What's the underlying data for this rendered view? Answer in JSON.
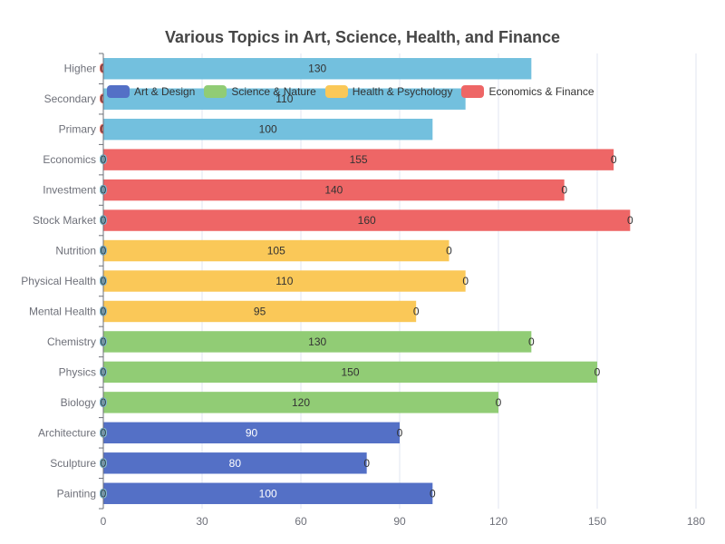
{
  "chart_data": {
    "type": "bar",
    "orientation": "horizontal",
    "title": "Various Topics in Art, Science, Health, and Finance",
    "xlim": [
      0,
      180
    ],
    "x_ticks": [
      "0",
      "30",
      "60",
      "90",
      "120",
      "150",
      "180"
    ],
    "grid": true,
    "legend_position": "top-left",
    "categories": [
      "Painting",
      "Sculpture",
      "Architecture",
      "Biology",
      "Physics",
      "Chemistry",
      "Mental Health",
      "Physical Health",
      "Nutrition",
      "Stock Market",
      "Investment",
      "Economics",
      "Primary",
      "Secondary",
      "Higher"
    ],
    "series": [
      {
        "name": "Art & Design",
        "color": "#5470c6",
        "label_color": "#ffffff",
        "values": [
          100,
          80,
          90,
          0,
          0,
          0,
          0,
          0,
          0,
          0,
          0,
          0,
          0,
          0,
          0
        ]
      },
      {
        "name": "Science & Nature",
        "color": "#91cc75",
        "label_color": "#333333",
        "values": [
          0,
          0,
          0,
          120,
          150,
          130,
          0,
          0,
          0,
          0,
          0,
          0,
          0,
          0,
          0
        ]
      },
      {
        "name": "Health & Psychology",
        "color": "#fac858",
        "label_color": "#333333",
        "values": [
          0,
          0,
          0,
          0,
          0,
          0,
          95,
          110,
          105,
          0,
          0,
          0,
          0,
          0,
          0
        ]
      },
      {
        "name": "Economics & Finance",
        "color": "#ee6666",
        "label_color": "#333333",
        "values": [
          0,
          0,
          0,
          0,
          0,
          0,
          0,
          0,
          0,
          160,
          140,
          155,
          0,
          0,
          0
        ]
      },
      {
        "name": "",
        "color": "#73c0de",
        "label_color": "#333333",
        "values": [
          0,
          0,
          0,
          0,
          0,
          0,
          0,
          0,
          0,
          0,
          0,
          0,
          100,
          110,
          130
        ]
      }
    ]
  }
}
